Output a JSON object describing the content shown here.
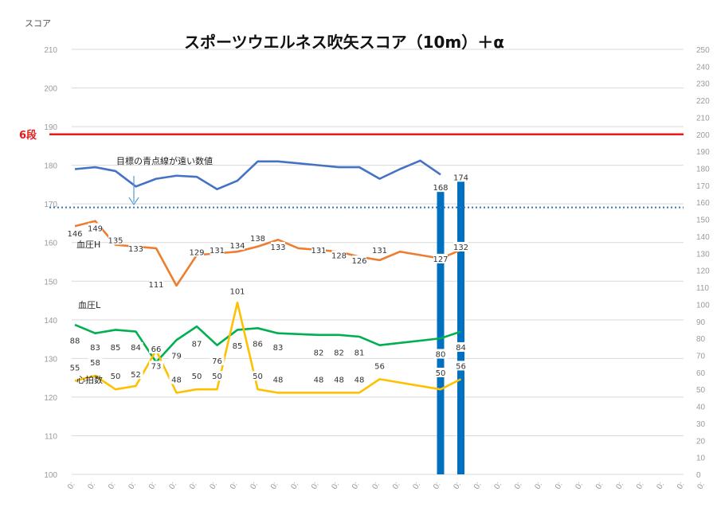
{
  "chart_data": {
    "type": "line",
    "title": "スポーツウエルネス吹矢スコア（10m）＋α",
    "ylabel": "スコア",
    "ylim": [
      100,
      210
    ],
    "y2lim": [
      0,
      250
    ],
    "grid": true,
    "x_tick_labels": [
      "0:",
      "0:",
      "0:",
      "0:",
      "0:",
      "0:",
      "0:",
      "0:",
      "0:",
      "0:",
      "0:",
      "0:",
      "0:",
      "0:",
      "0:",
      "0:",
      "0:",
      "0:",
      "0:",
      "0:",
      "0:",
      "0:",
      "0:",
      "0:",
      "0:",
      "0:",
      "0:",
      "0:",
      "0:",
      "0:",
      "0:",
      "0:"
    ],
    "reference_lines": [
      {
        "label": "6段",
        "axis": "right",
        "value": 200,
        "color": "#e31b1b"
      },
      {
        "label": "",
        "axis": "right",
        "value": 157,
        "color": "#2e75b6",
        "style": "dotted"
      }
    ],
    "annotations": [
      {
        "text": "目標の青点線が遠い数値"
      },
      {
        "text": "血圧H"
      },
      {
        "text": "血圧L"
      },
      {
        "text": "心拍数"
      }
    ],
    "series": [
      {
        "name": "スコア",
        "axis": "left",
        "color": "#4472c4",
        "values": [
          179,
          179.5,
          178.5,
          174.5,
          176.5,
          177.3,
          177,
          173.8,
          176,
          181,
          181,
          180.5,
          180,
          179.5,
          179.5,
          176.5,
          179,
          181.2,
          177.6
        ]
      },
      {
        "name": "血圧H",
        "axis": "right",
        "color": "#ed7d31",
        "values": [
          146,
          149,
          135,
          133,
          111,
          129,
          131,
          134,
          138,
          133,
          131,
          128,
          126,
          131,
          127,
          132
        ],
        "x_index": [
          0,
          1,
          2,
          4,
          5,
          6,
          8,
          9,
          10,
          11,
          13,
          14,
          15,
          16,
          18,
          19
        ]
      },
      {
        "name": "血圧L",
        "axis": "right",
        "color": "#00b050",
        "values": [
          88,
          83,
          85,
          84,
          66,
          79,
          87,
          76,
          85,
          86,
          83,
          82,
          82,
          81,
          76,
          80,
          84
        ],
        "x_index": [
          0,
          1,
          2,
          3,
          4,
          5,
          6,
          7,
          8,
          9,
          10,
          12,
          13,
          14,
          15,
          18,
          19
        ]
      },
      {
        "name": "心拍数",
        "axis": "right",
        "color": "#ffc000",
        "values": [
          55,
          58,
          50,
          52,
          73,
          48,
          50,
          50,
          101,
          50,
          48,
          48,
          48,
          48,
          56,
          50,
          56
        ],
        "x_index": [
          0,
          1,
          2,
          3,
          4,
          5,
          6,
          7,
          8,
          9,
          10,
          12,
          13,
          14,
          15,
          18,
          19
        ]
      }
    ],
    "bars": [
      {
        "x_index": 18,
        "value": 168,
        "axis": "right",
        "color": "#0070c0"
      },
      {
        "x_index": 19,
        "value": 174,
        "axis": "right",
        "color": "#0070c0"
      }
    ],
    "data_labels": [
      {
        "text": "146",
        "x_index": 0,
        "y": 141
      },
      {
        "text": "149",
        "x_index": 1,
        "y": 144
      },
      {
        "text": "135",
        "x_index": 2,
        "y": 137
      },
      {
        "text": "133",
        "x_index": 3,
        "y": 132
      },
      {
        "text": "111",
        "x_index": 4,
        "y": 111
      },
      {
        "text": "129",
        "x_index": 6,
        "y": 130
      },
      {
        "text": "131",
        "x_index": 7,
        "y": 131
      },
      {
        "text": "134",
        "x_index": 8,
        "y": 134
      },
      {
        "text": "138",
        "x_index": 9,
        "y": 138
      },
      {
        "text": "133",
        "x_index": 10,
        "y": 133
      },
      {
        "text": "131",
        "x_index": 12,
        "y": 131
      },
      {
        "text": "128",
        "x_index": 13,
        "y": 128
      },
      {
        "text": "126",
        "x_index": 14,
        "y": 125
      },
      {
        "text": "131",
        "x_index": 15,
        "y": 131
      },
      {
        "text": "127",
        "x_index": 18,
        "y": 126
      },
      {
        "text": "132",
        "x_index": 19,
        "y": 133
      },
      {
        "text": "168",
        "x_index": 18,
        "y": 168
      },
      {
        "text": "174",
        "x_index": 19,
        "y": 174
      },
      {
        "text": "88",
        "x_index": 0,
        "y": 78
      },
      {
        "text": "83",
        "x_index": 1,
        "y": 74
      },
      {
        "text": "85",
        "x_index": 2,
        "y": 74
      },
      {
        "text": "84",
        "x_index": 3,
        "y": 74
      },
      {
        "text": "66",
        "x_index": 4,
        "y": 73
      },
      {
        "text": "79",
        "x_index": 5,
        "y": 69
      },
      {
        "text": "87",
        "x_index": 6,
        "y": 76
      },
      {
        "text": "76",
        "x_index": 7,
        "y": 66
      },
      {
        "text": "85",
        "x_index": 8,
        "y": 75
      },
      {
        "text": "86",
        "x_index": 9,
        "y": 76
      },
      {
        "text": "83",
        "x_index": 10,
        "y": 74
      },
      {
        "text": "82",
        "x_index": 12,
        "y": 71
      },
      {
        "text": "82",
        "x_index": 13,
        "y": 71
      },
      {
        "text": "81",
        "x_index": 14,
        "y": 71
      },
      {
        "text": "80",
        "x_index": 18,
        "y": 70
      },
      {
        "text": "84",
        "x_index": 19,
        "y": 74
      },
      {
        "text": "55",
        "x_index": 0,
        "y": 62
      },
      {
        "text": "58",
        "x_index": 1,
        "y": 65
      },
      {
        "text": "50",
        "x_index": 2,
        "y": 57
      },
      {
        "text": "52",
        "x_index": 3,
        "y": 58
      },
      {
        "text": "73",
        "x_index": 4,
        "y": 63
      },
      {
        "text": "48",
        "x_index": 5,
        "y": 55
      },
      {
        "text": "50",
        "x_index": 6,
        "y": 57
      },
      {
        "text": "50",
        "x_index": 7,
        "y": 57
      },
      {
        "text": "101",
        "x_index": 8,
        "y": 107
      },
      {
        "text": "50",
        "x_index": 9,
        "y": 57
      },
      {
        "text": "48",
        "x_index": 10,
        "y": 55
      },
      {
        "text": "48",
        "x_index": 12,
        "y": 55
      },
      {
        "text": "48",
        "x_index": 13,
        "y": 55
      },
      {
        "text": "48",
        "x_index": 14,
        "y": 55
      },
      {
        "text": "56",
        "x_index": 15,
        "y": 63
      },
      {
        "text": "50",
        "x_index": 18,
        "y": 59
      },
      {
        "text": "56",
        "x_index": 19,
        "y": 63
      }
    ]
  }
}
